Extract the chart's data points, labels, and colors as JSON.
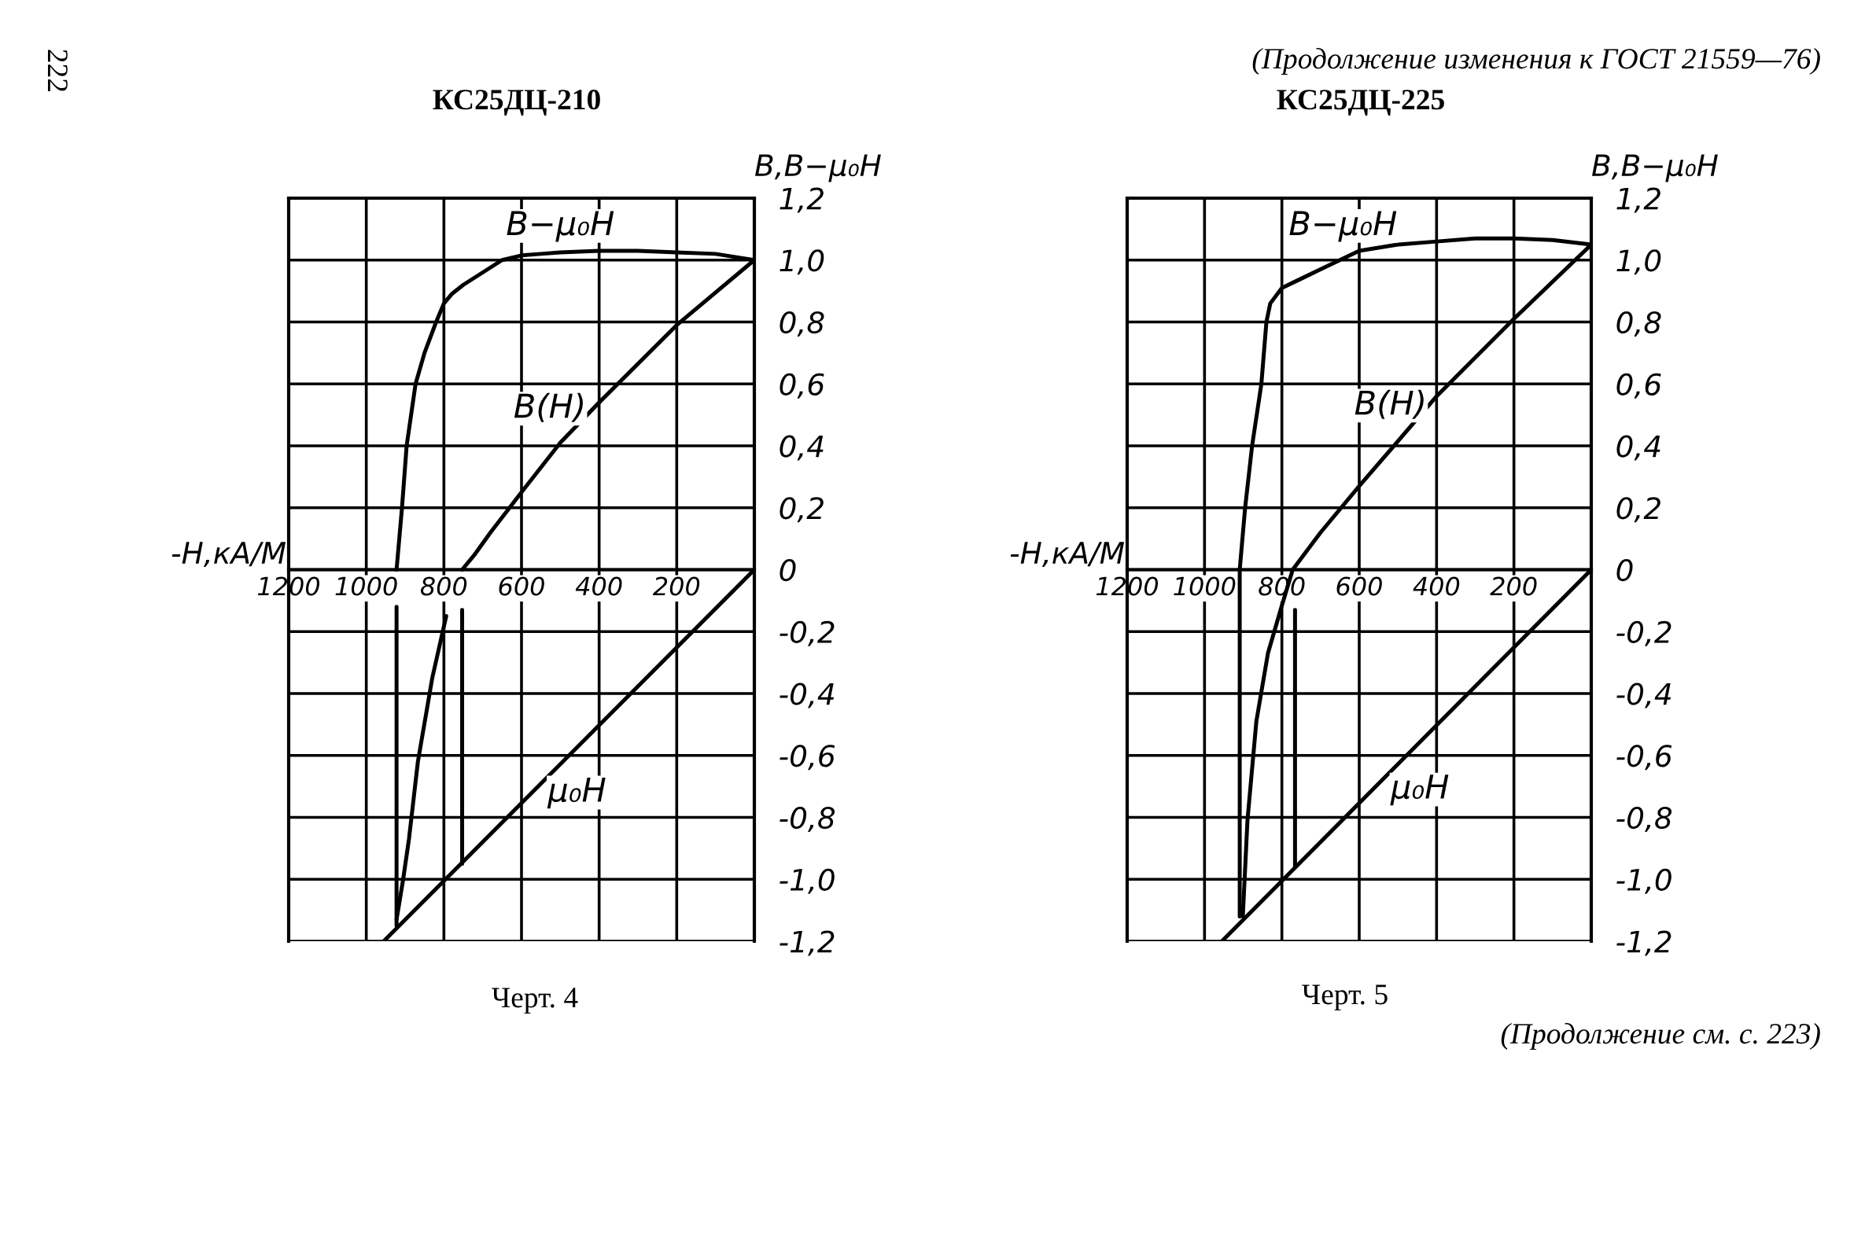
{
  "chart_data": [
    {
      "type": "line",
      "title": "КС25ДЦ-210",
      "xlabel": "-H,кА/М",
      "ylabel": "B,B−μ₀H",
      "series": [
        {
          "name": "B−μ₀H",
          "color": "#000000",
          "x": [
            0,
            100,
            200,
            300,
            400,
            500,
            550,
            600,
            650,
            700,
            750,
            780,
            800,
            820,
            850,
            873,
            896,
            908,
            922
          ],
          "values": [
            1.0,
            1.02,
            1.025,
            1.03,
            1.03,
            1.025,
            1.02,
            1.015,
            1.0,
            0.96,
            0.92,
            0.89,
            0.86,
            0.8,
            0.7,
            0.6,
            0.4,
            0.2,
            0
          ]
        },
        {
          "color": "#000000",
          "x": [
            922,
            922
          ],
          "values": [
            -0.12,
            -1.15
          ]
        },
        {
          "name": "B(H)",
          "color": "#000000",
          "x": [
            0,
            200,
            400,
            500,
            600,
            680,
            720,
            753
          ],
          "values": [
            1.0,
            0.79,
            0.54,
            0.41,
            0.25,
            0.12,
            0.05,
            0
          ]
        },
        {
          "name": "μ₀H",
          "color": "#000000",
          "x": [
            0,
            955
          ],
          "values": [
            0,
            -1.2
          ]
        },
        {
          "color": "#000000",
          "x": [
            922,
            905,
            890,
            867,
            830,
            794
          ],
          "values": [
            -1.13,
            -1.0,
            -0.87,
            -0.62,
            -0.35,
            -0.15
          ]
        },
        {
          "color": "#000000",
          "x": [
            753,
            753
          ],
          "values": [
            -0.13,
            -0.95
          ]
        }
      ],
      "xlim": [
        1200,
        0
      ],
      "ylim": [
        -1.2,
        1.2
      ],
      "xticks": [
        1200,
        1000,
        800,
        600,
        400,
        200
      ],
      "yticks": [
        {
          "value": 1.2,
          "label": "1,2"
        },
        {
          "value": 1.0,
          "label": "1,0"
        },
        {
          "value": 0.8,
          "label": "0,8"
        },
        {
          "value": 0.6,
          "label": "0,6"
        },
        {
          "value": 0.4,
          "label": "0,4"
        },
        {
          "value": 0.2,
          "label": "0,2"
        },
        0,
        {
          "value": -0.2,
          "label": "-0,2"
        },
        {
          "value": -0.4,
          "label": "-0,4"
        },
        {
          "value": -0.6,
          "label": "-0,6"
        },
        {
          "value": -0.8,
          "label": "-0,8"
        },
        {
          "value": -1.0,
          "label": "-1,0"
        },
        {
          "value": -1.2,
          "label": "-1,2"
        }
      ],
      "grid": true,
      "legend": false,
      "marker": "none",
      "line_style": "solid",
      "annotations": [
        "222",
        "Черт. 4"
      ]
    },
    {
      "type": "line",
      "title": "КС25ДЦ-225",
      "xlabel": "-H,кА/М",
      "ylabel": "B,B−μ₀H",
      "series": [
        {
          "name": "B−μ₀H",
          "color": "#000000",
          "x": [
            0,
            100,
            200,
            300,
            400,
            500,
            600,
            650,
            700,
            750,
            800,
            830,
            840,
            853,
            877,
            895,
            909,
            909
          ],
          "values": [
            1.05,
            1.065,
            1.07,
            1.07,
            1.06,
            1.05,
            1.03,
            1.0,
            0.97,
            0.94,
            0.91,
            0.86,
            0.8,
            0.6,
            0.4,
            0.2,
            0,
            -1.12
          ]
        },
        {
          "name": "B(H)",
          "color": "#000000",
          "x": [
            0,
            200,
            400,
            600,
            700,
            772,
            801,
            836,
            866,
            889,
            901
          ],
          "values": [
            1.05,
            0.81,
            0.56,
            0.27,
            0.12,
            0,
            -0.12,
            -0.27,
            -0.49,
            -0.81,
            -1.12
          ]
        },
        {
          "name": "μ₀H",
          "color": "#000000",
          "x": [
            0,
            955
          ],
          "values": [
            0,
            -1.2
          ]
        },
        {
          "color": "#000000",
          "x": [
            766,
            766
          ],
          "values": [
            -0.13,
            -0.96
          ]
        }
      ],
      "xlim": [
        1200,
        0
      ],
      "ylim": [
        -1.2,
        1.2
      ],
      "xticks": [
        1200,
        1000,
        800,
        600,
        400,
        200
      ],
      "yticks": [
        {
          "value": 1.2,
          "label": "1,2"
        },
        {
          "value": 1.0,
          "label": "1,0"
        },
        {
          "value": 0.8,
          "label": "0,8"
        },
        {
          "value": 0.6,
          "label": "0,6"
        },
        {
          "value": 0.4,
          "label": "0,4"
        },
        {
          "value": 0.2,
          "label": "0,2"
        },
        0,
        {
          "value": -0.2,
          "label": "-0,2"
        },
        {
          "value": -0.4,
          "label": "-0,4"
        },
        {
          "value": -0.6,
          "label": "-0,6"
        },
        {
          "value": -0.8,
          "label": "-0,8"
        },
        {
          "value": -1.0,
          "label": "-1,0"
        },
        {
          "value": -1.2,
          "label": "-1,2"
        }
      ],
      "grid": true,
      "legend": false,
      "marker": "none",
      "line_style": "solid",
      "annotations": [
        "(Продолжение изменения к ГОСТ 21559—76)",
        "Черт. 5",
        "(Продолжение см. с. 223)"
      ]
    }
  ]
}
